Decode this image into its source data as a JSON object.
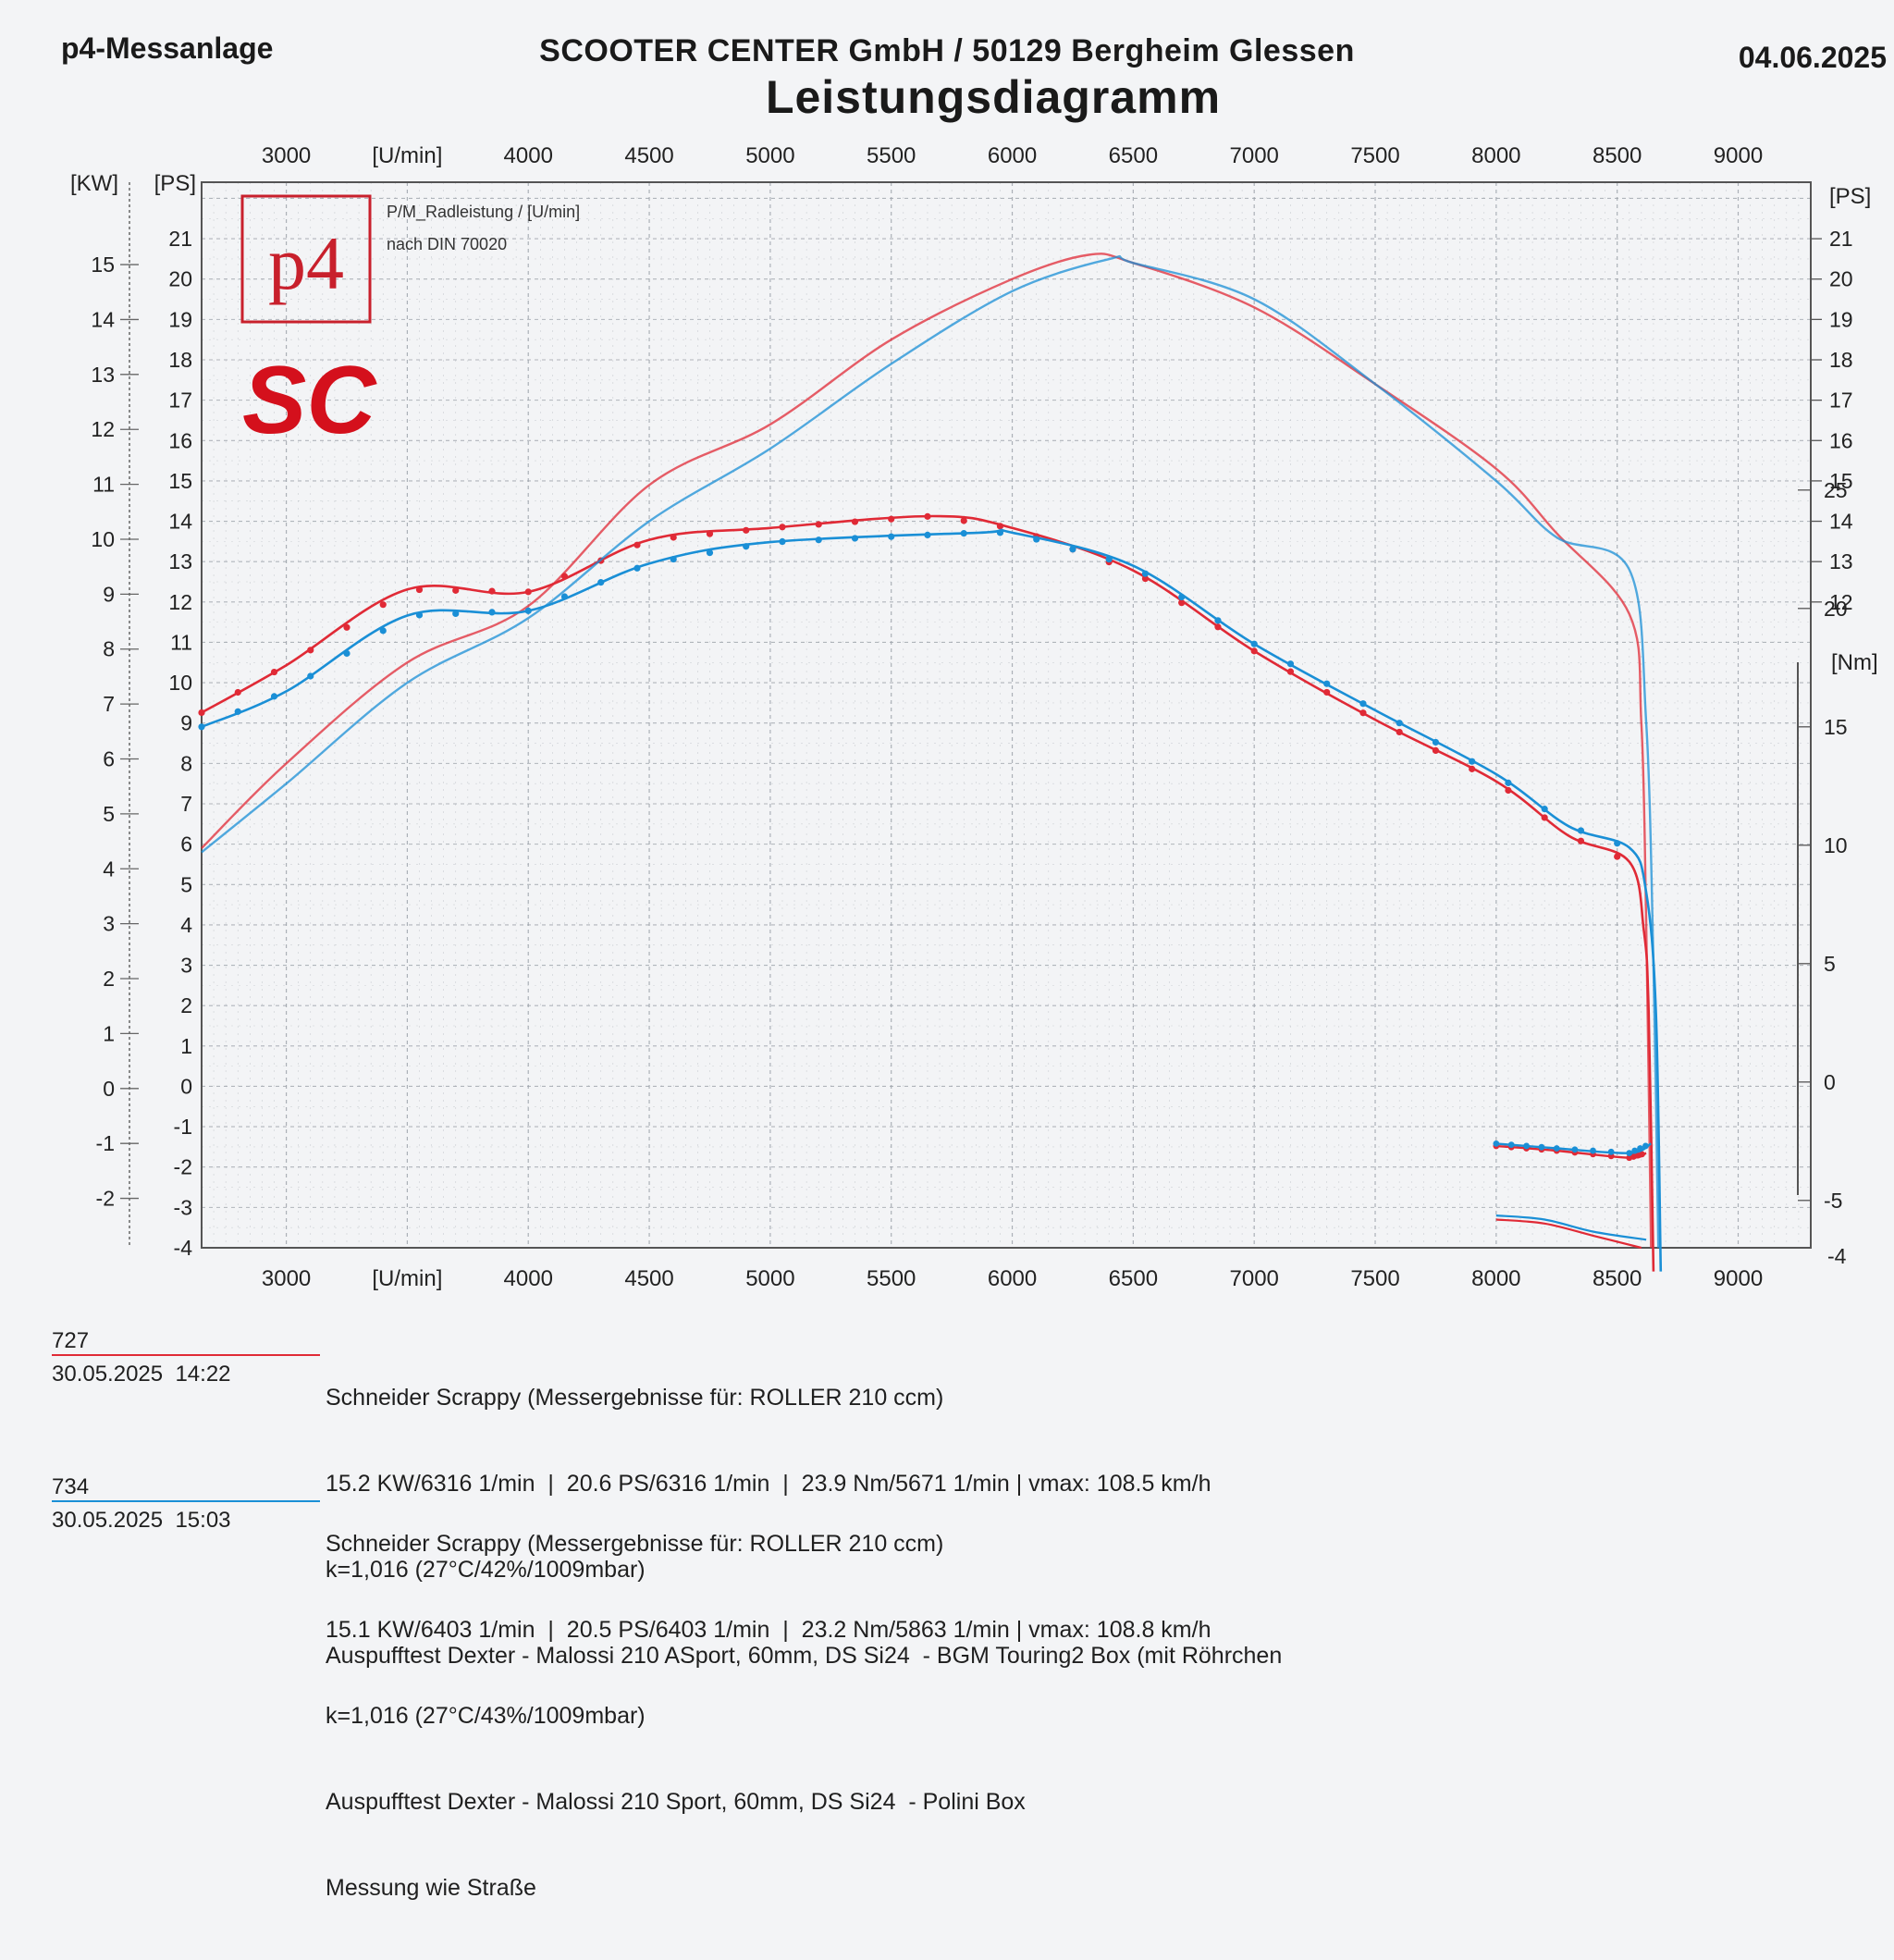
{
  "header": {
    "left": "p4-Messanlage",
    "center": "SCOOTER CENTER GmbH / 50129 Bergheim Glessen",
    "right": "04.06.2025",
    "title": "Leistungsdiagramm"
  },
  "logo": {
    "p4_text": "p4",
    "sc_text": "SC"
  },
  "legend_note": {
    "line1": "P/M_Radleistung / [U/min]",
    "line2": "nach DIN 70020"
  },
  "colors": {
    "run_727": "#e02a36",
    "run_734": "#1a8fd6",
    "grid": "#9aa0a8",
    "frame": "#555555"
  },
  "chart_data": {
    "type": "line",
    "title": "Leistungsdiagramm",
    "x_axis": {
      "label": "[U/min]",
      "range": [
        2650,
        9300
      ],
      "ticks": [
        3000,
        4000,
        4500,
        5000,
        5500,
        6000,
        6500,
        7000,
        7500,
        8000,
        8500,
        9000
      ],
      "label_at": 3500
    },
    "y_axis_kw": {
      "label": "[KW]",
      "range": [
        -2.9,
        16.5
      ],
      "ticks": [
        -2,
        -1,
        0,
        1,
        2,
        3,
        4,
        5,
        6,
        7,
        8,
        9,
        10,
        11,
        12,
        13,
        14,
        15
      ]
    },
    "y_axis_ps": {
      "label": "[PS]",
      "range": [
        -4,
        22.4
      ],
      "ticks": [
        -4,
        -3,
        -2,
        -1,
        0,
        1,
        2,
        3,
        4,
        5,
        6,
        7,
        8,
        9,
        10,
        11,
        12,
        13,
        14,
        15,
        16,
        17,
        18,
        19,
        20,
        21
      ]
    },
    "y_axis_ps_right": {
      "label": "[PS]",
      "ticks": [
        12,
        13,
        14,
        15,
        16,
        17,
        18,
        19,
        20,
        21
      ]
    },
    "y_axis_nm": {
      "label": "[Nm]",
      "range": [
        -7,
        38
      ],
      "ticks": [
        -5,
        0,
        5,
        10,
        15,
        20,
        25
      ]
    },
    "grid": true,
    "series": [
      {
        "name": "727",
        "color": "#e02a36",
        "power_ps": [
          [
            2650,
            5.9
          ],
          [
            3000,
            8.0
          ],
          [
            3500,
            10.5
          ],
          [
            4000,
            11.9
          ],
          [
            4500,
            14.9
          ],
          [
            5000,
            16.4
          ],
          [
            5500,
            18.5
          ],
          [
            6000,
            20.0
          ],
          [
            6316,
            20.6
          ],
          [
            6500,
            20.4
          ],
          [
            7000,
            19.3
          ],
          [
            7500,
            17.4
          ],
          [
            8000,
            15.3
          ],
          [
            8250,
            13.7
          ],
          [
            8550,
            11.7
          ],
          [
            8600,
            9.0
          ],
          [
            8620,
            4.0
          ],
          [
            8640,
            -4.0
          ]
        ],
        "torque_nm": [
          [
            2650,
            15.6
          ],
          [
            3000,
            17.6
          ],
          [
            3500,
            20.8
          ],
          [
            4000,
            20.7
          ],
          [
            4500,
            22.9
          ],
          [
            5000,
            23.4
          ],
          [
            5671,
            23.9
          ],
          [
            6000,
            23.4
          ],
          [
            6500,
            21.6
          ],
          [
            7000,
            18.2
          ],
          [
            7500,
            15.3
          ],
          [
            8000,
            12.7
          ],
          [
            8300,
            10.4
          ],
          [
            8550,
            9.3
          ],
          [
            8610,
            6.4
          ],
          [
            8630,
            3.0
          ],
          [
            8650,
            -8.0
          ]
        ],
        "torque_low_nm": [
          [
            8000,
            -2.7
          ],
          [
            8250,
            -2.9
          ],
          [
            8550,
            -3.2
          ],
          [
            8620,
            -3.0
          ]
        ],
        "power_low_ps": [
          [
            8000,
            -3.3
          ],
          [
            8200,
            -3.4
          ],
          [
            8400,
            -3.7
          ],
          [
            8600,
            -4.0
          ]
        ]
      },
      {
        "name": "734",
        "color": "#1a8fd6",
        "power_ps": [
          [
            2650,
            5.8
          ],
          [
            3000,
            7.5
          ],
          [
            3500,
            10.0
          ],
          [
            4000,
            11.6
          ],
          [
            4500,
            14.0
          ],
          [
            5000,
            15.8
          ],
          [
            5500,
            17.9
          ],
          [
            6000,
            19.7
          ],
          [
            6403,
            20.5
          ],
          [
            6500,
            20.4
          ],
          [
            7000,
            19.5
          ],
          [
            7500,
            17.4
          ],
          [
            8000,
            15.0
          ],
          [
            8250,
            13.6
          ],
          [
            8550,
            12.8
          ],
          [
            8620,
            9.0
          ],
          [
            8650,
            3.0
          ],
          [
            8670,
            -4.0
          ]
        ],
        "torque_nm": [
          [
            2650,
            15.0
          ],
          [
            3000,
            16.5
          ],
          [
            3500,
            19.7
          ],
          [
            4000,
            19.9
          ],
          [
            4500,
            21.9
          ],
          [
            5000,
            22.8
          ],
          [
            5863,
            23.2
          ],
          [
            6000,
            23.2
          ],
          [
            6500,
            21.8
          ],
          [
            7000,
            18.5
          ],
          [
            7500,
            15.7
          ],
          [
            8000,
            13.0
          ],
          [
            8300,
            10.8
          ],
          [
            8550,
            9.9
          ],
          [
            8620,
            8.0
          ],
          [
            8660,
            3.0
          ],
          [
            8680,
            -8.0
          ]
        ],
        "torque_low_nm": [
          [
            8000,
            -2.6
          ],
          [
            8250,
            -2.8
          ],
          [
            8550,
            -3.0
          ],
          [
            8640,
            -2.6
          ]
        ],
        "power_low_ps": [
          [
            8000,
            -3.2
          ],
          [
            8200,
            -3.3
          ],
          [
            8400,
            -3.6
          ],
          [
            8620,
            -3.8
          ]
        ]
      }
    ]
  },
  "runs": [
    {
      "id": "727",
      "date": "30.05.2025  14:22",
      "line1": "Schneider Scrappy (Messergebnisse für: ROLLER 210 ccm)",
      "line2": "15.2 KW/6316 1/min  |  20.6 PS/6316 1/min  |  23.9 Nm/5671 1/min | vmax: 108.5 km/h",
      "line3": "k=1,016 (27°C/42%/1009mbar)",
      "line4": "Auspufftest Dexter - Malossi 210 ASport, 60mm, DS Si24  - BGM Touring2 Box (mit Röhrchen"
    },
    {
      "id": "734",
      "date": "30.05.2025  15:03",
      "line1": "Schneider Scrappy (Messergebnisse für: ROLLER 210 ccm)",
      "line2": "15.1 KW/6403 1/min  |  20.5 PS/6403 1/min  |  23.2 Nm/5863 1/min | vmax: 108.8 km/h",
      "line3": "k=1,016 (27°C/43%/1009mbar)",
      "line4": "Auspufftest Dexter - Malossi 210 Sport, 60mm, DS Si24  - Polini Box",
      "line5": "Messung wie Straße"
    }
  ]
}
